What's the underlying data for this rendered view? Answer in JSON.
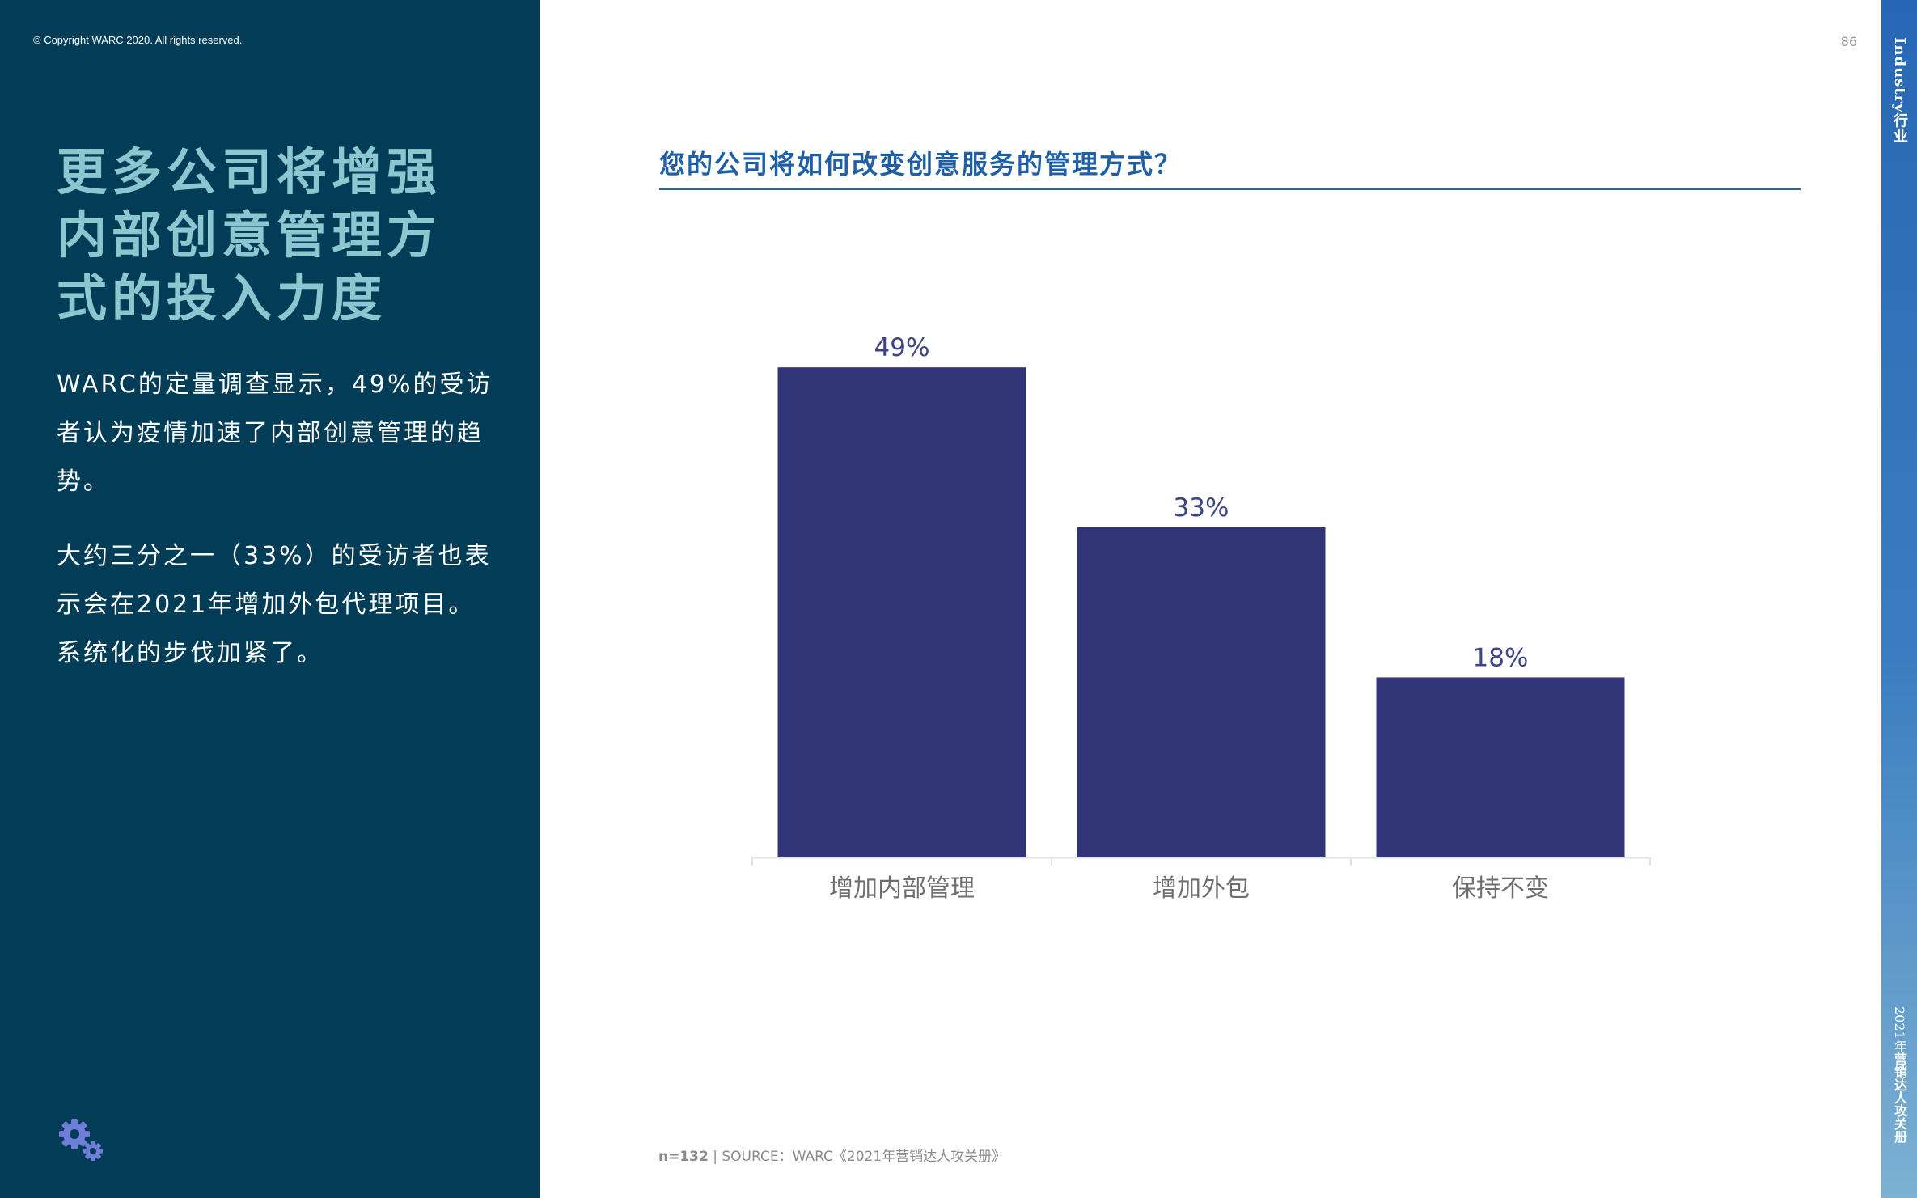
{
  "copyright": "© Copyright WARC 2020. All rights reserved.",
  "page_number": "86",
  "left_panel": {
    "headline": "更多公司将增强内部创意管理方式的投入力度",
    "paragraph_1": "WARC的定量调查显示，49%的受访者认为疫情加速了内部创意管理的趋势。",
    "paragraph_2": "大约三分之一（33%）的受访者也表示会在2021年增加外包代理项目。系统化的步伐加紧了。",
    "icon": "gears-icon"
  },
  "side_band": {
    "section_title": "Industry行业",
    "footer_year": "2021年",
    "footer_title": "营销达人攻关册"
  },
  "chart_title": "您的公司将如何改变创意服务的管理方式？",
  "footnote": {
    "n": "n=132",
    "source": " | SOURCE：WARC《2021年营销达人攻关册》"
  },
  "colors": {
    "panel": "#023d58",
    "headline": "#8cc6cf",
    "bar": "#313578",
    "chart_title": "#1f5fa8",
    "data_label": "#3e4488",
    "axis_label": "#6e6e6e"
  },
  "chart_data": {
    "type": "bar",
    "categories": [
      "增加内部管理",
      "增加外包",
      "保持不变"
    ],
    "values": [
      49,
      33,
      18
    ],
    "labels": [
      "49%",
      "33%",
      "18%"
    ],
    "ylim": [
      0,
      55
    ],
    "grid": false,
    "legend": "none",
    "title": "您的公司将如何改变创意服务的管理方式？",
    "xlabel": "",
    "ylabel": ""
  }
}
